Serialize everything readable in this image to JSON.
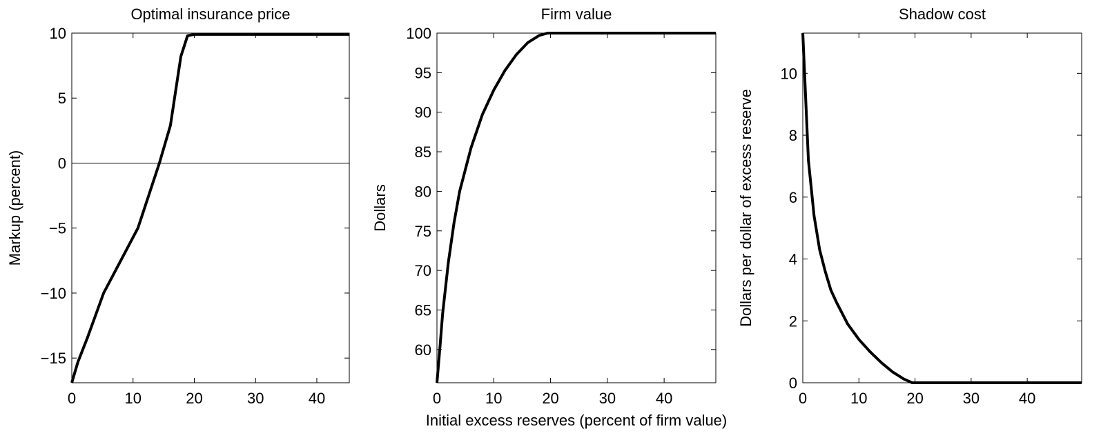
{
  "chart_data": [
    {
      "type": "line",
      "title": "Optimal insurance price",
      "ylabel": "Markup (percent)",
      "x": [
        0,
        1,
        2.5,
        5.2,
        8,
        10.8,
        14.3,
        16.1,
        17.8,
        18.9,
        20,
        45.3
      ],
      "series": [
        {
          "color": "#000000",
          "values": [
            -16.9,
            -15.3,
            -13.5,
            -10,
            -7.5,
            -5,
            0,
            2.9,
            8.2,
            9.8,
            9.9,
            9.9
          ]
        }
      ],
      "xlim": [
        0,
        45.3
      ],
      "ylim": [
        -16.9,
        10
      ],
      "xticks": [
        0,
        10,
        20,
        30,
        40
      ],
      "yticks": [
        {
          "value": -15,
          "label": "−15"
        },
        {
          "value": -10,
          "label": "−10"
        },
        {
          "value": -5,
          "label": "−5"
        },
        0,
        5,
        10
      ],
      "zero_line": true
    },
    {
      "type": "line",
      "title": "Firm value",
      "ylabel": "Dollars",
      "xlabel": "Initial excess reserves (percent of firm value)",
      "x": [
        0,
        0.5,
        1,
        2,
        3,
        4,
        6,
        8,
        10,
        12,
        14,
        16,
        18,
        19.5,
        49.1
      ],
      "series": [
        {
          "color": "#000000",
          "values": [
            55.8,
            60,
            64.5,
            71,
            76,
            80,
            85.5,
            89.7,
            92.8,
            95.3,
            97.3,
            98.8,
            99.7,
            100,
            100
          ]
        }
      ],
      "xlim": [
        0,
        49.1
      ],
      "ylim": [
        55.8,
        100
      ],
      "xticks": [
        0,
        10,
        20,
        30,
        40
      ],
      "yticks": [
        60,
        65,
        70,
        75,
        80,
        85,
        90,
        95,
        100
      ],
      "zero_line": false
    },
    {
      "type": "line",
      "title": "Shadow cost",
      "ylabel": "Dollars per dollar of excess reserve",
      "x": [
        0,
        1,
        2,
        3,
        4,
        5,
        6,
        8,
        10,
        12,
        14,
        16,
        18,
        19.5,
        49.7
      ],
      "series": [
        {
          "color": "#000000",
          "values": [
            11.3,
            7.2,
            5.4,
            4.3,
            3.6,
            3.0,
            2.6,
            1.9,
            1.4,
            1.0,
            0.65,
            0.35,
            0.12,
            0,
            0
          ]
        }
      ],
      "xlim": [
        0,
        49.7
      ],
      "ylim": [
        0,
        11.3
      ],
      "xticks": [
        0,
        10,
        20,
        30,
        40
      ],
      "yticks": [
        0,
        2,
        4,
        6,
        8,
        10
      ],
      "zero_line": false
    }
  ]
}
